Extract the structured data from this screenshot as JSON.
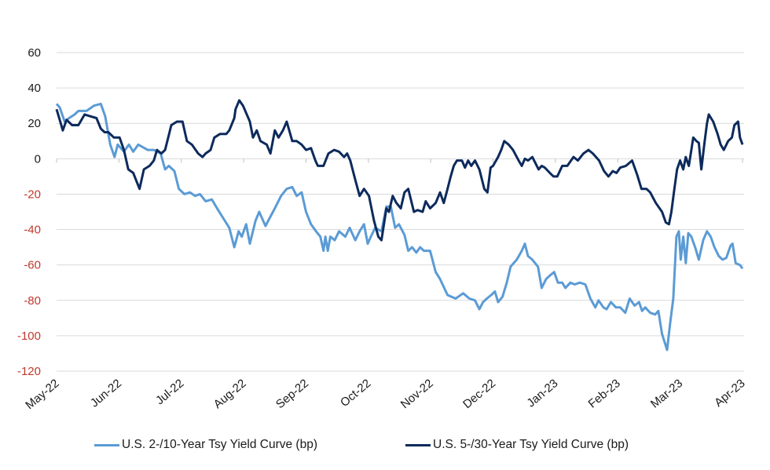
{
  "chart_data": {
    "type": "line",
    "title": "",
    "xlabel": "",
    "ylabel": "",
    "ylim": [
      -120,
      60
    ],
    "yticks": [
      60,
      40,
      20,
      0,
      -20,
      -40,
      -60,
      -80,
      -100,
      -120
    ],
    "y_negative_tick_color": "#c0392b",
    "y_positive_tick_color": "#1a1a1a",
    "x_categories": [
      "May-22",
      "Jun-22",
      "Jul-22",
      "Aug-22",
      "Sep-22",
      "Oct-22",
      "Nov-22",
      "Dec-22",
      "Jan-23",
      "Feb-23",
      "Mar-23",
      "Apr-23"
    ],
    "x_unit": "month index (0 = May-22, 11 = Apr-23)",
    "grid": true,
    "legend_position": "bottom",
    "series": [
      {
        "name": "U.S. 2-/10-Year Tsy Yield Curve (bp)",
        "color": "#5b9bd5",
        "points": [
          [
            0.0,
            31
          ],
          [
            0.05,
            29
          ],
          [
            0.13,
            21
          ],
          [
            0.2,
            23
          ],
          [
            0.29,
            25
          ],
          [
            0.35,
            27
          ],
          [
            0.48,
            27
          ],
          [
            0.6,
            30
          ],
          [
            0.71,
            31
          ],
          [
            0.78,
            24
          ],
          [
            0.86,
            8
          ],
          [
            0.93,
            1
          ],
          [
            0.98,
            8
          ],
          [
            1.08,
            4
          ],
          [
            1.16,
            8
          ],
          [
            1.23,
            4
          ],
          [
            1.31,
            8
          ],
          [
            1.46,
            5
          ],
          [
            1.56,
            5
          ],
          [
            1.67,
            3
          ],
          [
            1.74,
            -6
          ],
          [
            1.8,
            -4
          ],
          [
            1.89,
            -7
          ],
          [
            1.96,
            -17
          ],
          [
            2.05,
            -20
          ],
          [
            2.14,
            -19
          ],
          [
            2.22,
            -21
          ],
          [
            2.3,
            -20
          ],
          [
            2.39,
            -24
          ],
          [
            2.49,
            -23
          ],
          [
            2.59,
            -29
          ],
          [
            2.68,
            -34
          ],
          [
            2.77,
            -39
          ],
          [
            2.85,
            -50
          ],
          [
            2.92,
            -41
          ],
          [
            2.97,
            -44
          ],
          [
            3.04,
            -37
          ],
          [
            3.1,
            -48
          ],
          [
            3.19,
            -35
          ],
          [
            3.25,
            -30
          ],
          [
            3.35,
            -38
          ],
          [
            3.44,
            -32
          ],
          [
            3.5,
            -28
          ],
          [
            3.6,
            -21
          ],
          [
            3.69,
            -17
          ],
          [
            3.78,
            -16
          ],
          [
            3.85,
            -21
          ],
          [
            3.93,
            -19
          ],
          [
            4.0,
            -30
          ],
          [
            4.08,
            -37
          ],
          [
            4.16,
            -41
          ],
          [
            4.23,
            -44
          ],
          [
            4.28,
            -52
          ],
          [
            4.31,
            -44
          ],
          [
            4.35,
            -52
          ],
          [
            4.39,
            -44
          ],
          [
            4.46,
            -46
          ],
          [
            4.53,
            -41
          ],
          [
            4.63,
            -44
          ],
          [
            4.7,
            -39
          ],
          [
            4.79,
            -46
          ],
          [
            4.86,
            -41
          ],
          [
            4.93,
            -37
          ],
          [
            4.99,
            -48
          ],
          [
            5.04,
            -44
          ],
          [
            5.11,
            -39
          ],
          [
            5.21,
            -41
          ],
          [
            5.29,
            -27
          ],
          [
            5.36,
            -27
          ],
          [
            5.43,
            -39
          ],
          [
            5.49,
            -37
          ],
          [
            5.58,
            -43
          ],
          [
            5.64,
            -52
          ],
          [
            5.7,
            -50
          ],
          [
            5.77,
            -53
          ],
          [
            5.83,
            -50
          ],
          [
            5.89,
            -52
          ],
          [
            5.99,
            -52
          ],
          [
            6.08,
            -64
          ],
          [
            6.15,
            -68
          ],
          [
            6.27,
            -77
          ],
          [
            6.4,
            -79
          ],
          [
            6.52,
            -76
          ],
          [
            6.62,
            -79
          ],
          [
            6.71,
            -80
          ],
          [
            6.78,
            -85
          ],
          [
            6.84,
            -81
          ],
          [
            6.9,
            -79
          ],
          [
            6.97,
            -77
          ],
          [
            7.03,
            -75
          ],
          [
            7.08,
            -81
          ],
          [
            7.15,
            -78
          ],
          [
            7.22,
            -70
          ],
          [
            7.28,
            -61
          ],
          [
            7.38,
            -57
          ],
          [
            7.46,
            -52
          ],
          [
            7.51,
            -48
          ],
          [
            7.56,
            -55
          ],
          [
            7.63,
            -57
          ],
          [
            7.72,
            -61
          ],
          [
            7.78,
            -73
          ],
          [
            7.85,
            -68
          ],
          [
            7.91,
            -66
          ],
          [
            7.98,
            -64
          ],
          [
            8.04,
            -70
          ],
          [
            8.11,
            -70
          ],
          [
            8.16,
            -73
          ],
          [
            8.24,
            -70
          ],
          [
            8.31,
            -71
          ],
          [
            8.39,
            -70
          ],
          [
            8.48,
            -71
          ],
          [
            8.56,
            -79
          ],
          [
            8.64,
            -84
          ],
          [
            8.69,
            -80
          ],
          [
            8.77,
            -84
          ],
          [
            8.82,
            -85
          ],
          [
            8.89,
            -81
          ],
          [
            8.97,
            -84
          ],
          [
            9.04,
            -84
          ],
          [
            9.12,
            -87
          ],
          [
            9.19,
            -79
          ],
          [
            9.27,
            -83
          ],
          [
            9.34,
            -81
          ],
          [
            9.39,
            -86
          ],
          [
            9.44,
            -84
          ],
          [
            9.52,
            -87
          ],
          [
            9.6,
            -88
          ],
          [
            9.65,
            -86
          ],
          [
            9.71,
            -99
          ],
          [
            9.79,
            -108
          ],
          [
            9.84,
            -93
          ],
          [
            9.89,
            -79
          ],
          [
            9.94,
            -44
          ],
          [
            9.98,
            -41
          ],
          [
            10.01,
            -57
          ],
          [
            10.05,
            -44
          ],
          [
            10.09,
            -59
          ],
          [
            10.13,
            -42
          ],
          [
            10.18,
            -44
          ],
          [
            10.24,
            -50
          ],
          [
            10.3,
            -57
          ],
          [
            10.37,
            -46
          ],
          [
            10.43,
            -41
          ],
          [
            10.49,
            -44
          ],
          [
            10.55,
            -50
          ],
          [
            10.62,
            -55
          ],
          [
            10.68,
            -57
          ],
          [
            10.74,
            -56
          ],
          [
            10.81,
            -49
          ],
          [
            10.84,
            -48
          ],
          [
            10.89,
            -59
          ],
          [
            10.96,
            -60
          ],
          [
            11.0,
            -62
          ]
        ]
      },
      {
        "name": "U.S. 5-/30-Year Tsy Yield Curve (bp)",
        "color": "#0d2a5c",
        "points": [
          [
            0.0,
            28
          ],
          [
            0.05,
            22
          ],
          [
            0.1,
            16
          ],
          [
            0.16,
            22
          ],
          [
            0.25,
            19
          ],
          [
            0.35,
            19
          ],
          [
            0.45,
            25
          ],
          [
            0.54,
            24
          ],
          [
            0.64,
            23
          ],
          [
            0.71,
            17
          ],
          [
            0.77,
            15
          ],
          [
            0.83,
            15
          ],
          [
            0.92,
            12
          ],
          [
            1.01,
            12
          ],
          [
            1.08,
            5
          ],
          [
            1.15,
            -6
          ],
          [
            1.23,
            -8
          ],
          [
            1.33,
            -17
          ],
          [
            1.4,
            -6
          ],
          [
            1.49,
            -4
          ],
          [
            1.56,
            -1
          ],
          [
            1.61,
            5
          ],
          [
            1.68,
            3
          ],
          [
            1.74,
            5
          ],
          [
            1.79,
            12
          ],
          [
            1.84,
            19
          ],
          [
            1.93,
            21
          ],
          [
            2.02,
            21
          ],
          [
            2.09,
            10
          ],
          [
            2.17,
            8
          ],
          [
            2.27,
            3
          ],
          [
            2.34,
            1
          ],
          [
            2.39,
            3
          ],
          [
            2.47,
            5
          ],
          [
            2.53,
            12
          ],
          [
            2.62,
            14
          ],
          [
            2.72,
            14
          ],
          [
            2.77,
            16
          ],
          [
            2.85,
            23
          ],
          [
            2.87,
            28
          ],
          [
            2.93,
            33
          ],
          [
            2.99,
            30
          ],
          [
            3.1,
            21
          ],
          [
            3.15,
            12
          ],
          [
            3.21,
            16
          ],
          [
            3.27,
            10
          ],
          [
            3.37,
            8
          ],
          [
            3.43,
            3
          ],
          [
            3.5,
            16
          ],
          [
            3.56,
            12
          ],
          [
            3.63,
            16
          ],
          [
            3.69,
            21
          ],
          [
            3.78,
            10
          ],
          [
            3.85,
            10
          ],
          [
            3.93,
            8
          ],
          [
            4.0,
            5
          ],
          [
            4.08,
            6
          ],
          [
            4.15,
            -1
          ],
          [
            4.19,
            -4
          ],
          [
            4.28,
            -4
          ],
          [
            4.36,
            3
          ],
          [
            4.45,
            5
          ],
          [
            4.53,
            4
          ],
          [
            4.61,
            1
          ],
          [
            4.66,
            3
          ],
          [
            4.71,
            -1
          ],
          [
            4.79,
            -12
          ],
          [
            4.86,
            -21
          ],
          [
            4.93,
            -17
          ],
          [
            5.01,
            -21
          ],
          [
            5.09,
            -35
          ],
          [
            5.16,
            -44
          ],
          [
            5.21,
            -46
          ],
          [
            5.29,
            -28
          ],
          [
            5.33,
            -30
          ],
          [
            5.39,
            -21
          ],
          [
            5.45,
            -25
          ],
          [
            5.52,
            -28
          ],
          [
            5.58,
            -19
          ],
          [
            5.64,
            -17
          ],
          [
            5.73,
            -30
          ],
          [
            5.79,
            -29
          ],
          [
            5.87,
            -30
          ],
          [
            5.92,
            -24
          ],
          [
            5.99,
            -28
          ],
          [
            6.08,
            -25
          ],
          [
            6.15,
            -19
          ],
          [
            6.21,
            -25
          ],
          [
            6.27,
            -17
          ],
          [
            6.32,
            -10
          ],
          [
            6.37,
            -4
          ],
          [
            6.42,
            -1
          ],
          [
            6.5,
            -1
          ],
          [
            6.55,
            -5
          ],
          [
            6.6,
            -1
          ],
          [
            6.65,
            -4
          ],
          [
            6.71,
            -1
          ],
          [
            6.78,
            -6
          ],
          [
            6.86,
            -17
          ],
          [
            6.91,
            -19
          ],
          [
            6.96,
            -5
          ],
          [
            7.0,
            -4
          ],
          [
            7.08,
            1
          ],
          [
            7.13,
            5
          ],
          [
            7.18,
            10
          ],
          [
            7.25,
            8
          ],
          [
            7.32,
            5
          ],
          [
            7.41,
            -1
          ],
          [
            7.46,
            -4
          ],
          [
            7.51,
            0
          ],
          [
            7.56,
            -1
          ],
          [
            7.63,
            1
          ],
          [
            7.73,
            -6
          ],
          [
            7.78,
            -4
          ],
          [
            7.83,
            -5
          ],
          [
            7.91,
            -8
          ],
          [
            7.97,
            -10
          ],
          [
            8.03,
            -10
          ],
          [
            8.11,
            -4
          ],
          [
            8.19,
            -4
          ],
          [
            8.29,
            1
          ],
          [
            8.36,
            -1
          ],
          [
            8.45,
            3
          ],
          [
            8.53,
            5
          ],
          [
            8.6,
            3
          ],
          [
            8.7,
            -1
          ],
          [
            8.78,
            -7
          ],
          [
            8.85,
            -10
          ],
          [
            8.92,
            -7
          ],
          [
            8.98,
            -8
          ],
          [
            9.04,
            -5
          ],
          [
            9.13,
            -4
          ],
          [
            9.23,
            -1
          ],
          [
            9.31,
            -9
          ],
          [
            9.38,
            -17
          ],
          [
            9.46,
            -17
          ],
          [
            9.52,
            -19
          ],
          [
            9.61,
            -25
          ],
          [
            9.71,
            -30
          ],
          [
            9.77,
            -36
          ],
          [
            9.82,
            -37
          ],
          [
            9.86,
            -30
          ],
          [
            9.9,
            -19
          ],
          [
            9.95,
            -6
          ],
          [
            10.0,
            -1
          ],
          [
            10.05,
            -6
          ],
          [
            10.09,
            1
          ],
          [
            10.14,
            -4
          ],
          [
            10.18,
            5
          ],
          [
            10.21,
            12
          ],
          [
            10.26,
            10
          ],
          [
            10.3,
            9
          ],
          [
            10.34,
            -6
          ],
          [
            10.39,
            9
          ],
          [
            10.43,
            20
          ],
          [
            10.46,
            25
          ],
          [
            10.53,
            21
          ],
          [
            10.6,
            14
          ],
          [
            10.65,
            8
          ],
          [
            10.7,
            5
          ],
          [
            10.77,
            10
          ],
          [
            10.83,
            12
          ],
          [
            10.87,
            19
          ],
          [
            10.93,
            21
          ],
          [
            10.96,
            12
          ],
          [
            11.0,
            8
          ]
        ]
      }
    ]
  },
  "legend": {
    "items": [
      {
        "label": "U.S. 2-/10-Year Tsy Yield Curve (bp)",
        "color": "#5b9bd5"
      },
      {
        "label": "U.S. 5-/30-Year Tsy Yield Curve (bp)",
        "color": "#0d2a5c"
      }
    ]
  }
}
